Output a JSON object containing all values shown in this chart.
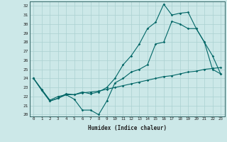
{
  "xlabel": "Humidex (Indice chaleur)",
  "bg_color": "#cce8e8",
  "line_color": "#006666",
  "grid_color": "#aad0d0",
  "xlim": [
    -0.5,
    23.5
  ],
  "ylim": [
    19.8,
    32.5
  ],
  "xticks": [
    0,
    1,
    2,
    3,
    4,
    5,
    6,
    7,
    8,
    9,
    10,
    11,
    12,
    13,
    14,
    15,
    16,
    17,
    18,
    19,
    20,
    21,
    22,
    23
  ],
  "yticks": [
    20,
    21,
    22,
    23,
    24,
    25,
    26,
    27,
    28,
    29,
    30,
    31,
    32
  ],
  "line1_x": [
    0,
    1,
    2,
    3,
    4,
    5,
    6,
    7,
    8,
    9,
    10,
    11,
    12,
    13,
    14,
    15,
    16,
    17,
    18,
    19,
    20,
    21,
    22,
    23
  ],
  "line1_y": [
    24.0,
    22.7,
    21.5,
    21.8,
    22.2,
    21.7,
    20.5,
    20.5,
    20.0,
    21.5,
    23.5,
    24.0,
    24.7,
    25.0,
    25.5,
    27.8,
    28.0,
    30.3,
    30.0,
    29.5,
    29.5,
    28.0,
    25.0,
    24.5
  ],
  "line2_x": [
    0,
    1,
    2,
    3,
    4,
    5,
    6,
    7,
    8,
    9,
    10,
    11,
    12,
    13,
    14,
    15,
    16,
    17,
    18,
    19,
    20,
    21,
    22,
    23
  ],
  "line2_y": [
    24.0,
    22.8,
    21.6,
    22.0,
    22.2,
    22.2,
    22.4,
    22.5,
    22.6,
    22.8,
    23.0,
    23.2,
    23.4,
    23.6,
    23.8,
    24.0,
    24.2,
    24.3,
    24.5,
    24.7,
    24.8,
    25.0,
    25.1,
    25.2
  ],
  "line3_x": [
    0,
    1,
    2,
    3,
    4,
    5,
    6,
    7,
    8,
    9,
    10,
    11,
    12,
    13,
    14,
    15,
    16,
    17,
    18,
    19,
    20,
    21,
    22,
    23
  ],
  "line3_y": [
    24.0,
    22.7,
    21.5,
    21.8,
    22.3,
    22.2,
    22.5,
    22.3,
    22.5,
    23.0,
    24.0,
    25.5,
    26.5,
    27.8,
    29.5,
    30.2,
    32.2,
    31.0,
    31.2,
    31.3,
    29.5,
    28.0,
    26.5,
    24.5
  ]
}
